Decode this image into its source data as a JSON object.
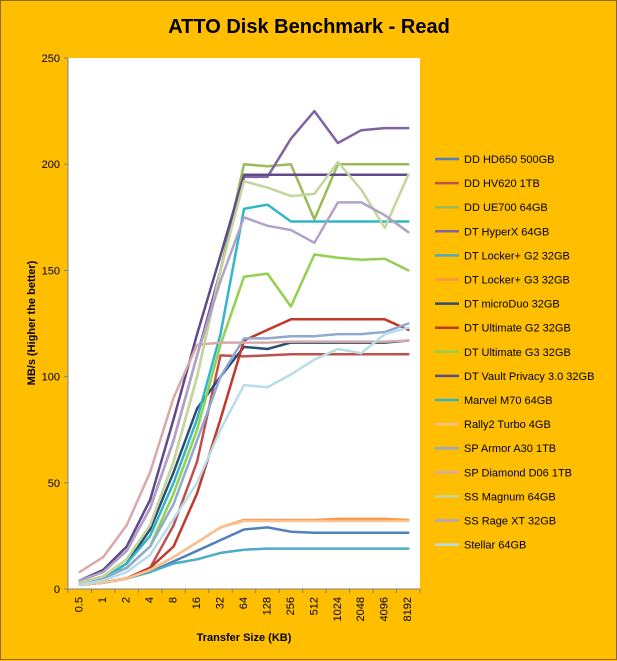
{
  "chart_data": {
    "type": "line",
    "title": "ATTO Disk Benchmark - Read",
    "xlabel": "Transfer Size (KB)",
    "ylabel": "MB/s (Higher the better)",
    "ylim": [
      0,
      250
    ],
    "yticks": [
      0,
      50,
      100,
      150,
      200,
      250
    ],
    "grid": false,
    "legend": "right",
    "categories": [
      "0.5",
      "1",
      "2",
      "4",
      "8",
      "16",
      "32",
      "64",
      "128",
      "256",
      "512",
      "1024",
      "2048",
      "4096",
      "8192"
    ],
    "series": [
      {
        "name": "DD HD650 500GB",
        "color": "#4f81bd",
        "values": [
          2,
          3,
          5,
          8,
          13,
          18,
          23,
          28,
          29,
          27,
          26.5,
          26.5,
          26.5,
          26.5,
          26.5
        ]
      },
      {
        "name": "DD HV620 1TB",
        "color": "#c0504d",
        "values": [
          2,
          3,
          5,
          10,
          30,
          60,
          110,
          109.5,
          110,
          110.5,
          110.5,
          110.5,
          110.5,
          110.5,
          110.5
        ]
      },
      {
        "name": "DD UE700 64GB",
        "color": "#9bbb59",
        "values": [
          3,
          6,
          14,
          30,
          60,
          100,
          150,
          200,
          199,
          200,
          174,
          200,
          200,
          200,
          200
        ]
      },
      {
        "name": "DT HyperX 64GB",
        "color": "#8064a2",
        "values": [
          4,
          8,
          18,
          38,
          70,
          110,
          150,
          194,
          194,
          212,
          225,
          210,
          216,
          217,
          217
        ]
      },
      {
        "name": "DT Locker+ G2 32GB",
        "color": "#4bacc6",
        "values": [
          2,
          3,
          5,
          8,
          12,
          14,
          17,
          18.5,
          19,
          19,
          19,
          19,
          19,
          19,
          19
        ]
      },
      {
        "name": "DT Locker+ G3 32GB",
        "color": "#f79646",
        "values": [
          2,
          3,
          5,
          9,
          15,
          22,
          29,
          32.5,
          32.5,
          32.5,
          32.5,
          33,
          33,
          33,
          32.5
        ]
      },
      {
        "name": "DT microDuo 32GB",
        "color": "#2c4d75",
        "values": [
          3,
          5,
          12,
          28,
          55,
          85,
          100,
          114,
          113,
          116,
          116,
          116,
          116,
          116,
          117
        ]
      },
      {
        "name": "DT Ultimate G2 32GB",
        "color": "#c0392b",
        "values": [
          2,
          3,
          5,
          10,
          20,
          45,
          80,
          117,
          122,
          127,
          127,
          127,
          127,
          127,
          122
        ]
      },
      {
        "name": "DT Ultimate G3 32GB",
        "color": "#92d050",
        "values": [
          3,
          5,
          10,
          20,
          45,
          75,
          115,
          147,
          148.5,
          133,
          157.5,
          156,
          155,
          155.5,
          150
        ]
      },
      {
        "name": "DT Vault Privacy 3.0 32GB",
        "color": "#5f4b8b",
        "values": [
          4,
          9,
          20,
          42,
          80,
          120,
          157,
          195,
          195,
          195,
          195,
          195,
          195,
          195,
          195
        ]
      },
      {
        "name": "Marvel M70 64GB",
        "color": "#31b6c8",
        "values": [
          3,
          5,
          12,
          25,
          50,
          80,
          120,
          179,
          181,
          173,
          173,
          173,
          173,
          173,
          173
        ]
      },
      {
        "name": "Rally2 Turbo 4GB",
        "color": "#fac090",
        "values": [
          2,
          3,
          5,
          9,
          15,
          22,
          29,
          32,
          32,
          32,
          32,
          32,
          32,
          32,
          32
        ]
      },
      {
        "name": "SP Armor A30 1TB",
        "color": "#8fa9d0",
        "values": [
          3,
          5,
          10,
          20,
          40,
          70,
          100,
          118,
          118,
          119,
          119,
          120,
          120,
          121,
          125
        ]
      },
      {
        "name": "SP Diamond D06 1TB",
        "color": "#d9a9a9",
        "values": [
          8,
          15,
          30,
          55,
          90,
          115,
          116,
          116,
          116,
          116.5,
          116.5,
          116.5,
          116.5,
          116.5,
          117
        ]
      },
      {
        "name": "SS Magnum 64GB",
        "color": "#c3d69b",
        "values": [
          3,
          6,
          14,
          30,
          60,
          100,
          150,
          192,
          189,
          185,
          186,
          201,
          188,
          170,
          195
        ]
      },
      {
        "name": "SS Rage XT 32GB",
        "color": "#b3a2c7",
        "values": [
          4,
          8,
          18,
          38,
          70,
          110,
          145,
          175,
          171,
          169,
          163,
          182,
          182,
          176,
          168
        ]
      },
      {
        "name": "Stellar 64GB",
        "color": "#b7dde8",
        "values": [
          2,
          4,
          8,
          16,
          33,
          50,
          75,
          96,
          95,
          101,
          108,
          113,
          111,
          120,
          123
        ]
      }
    ]
  }
}
